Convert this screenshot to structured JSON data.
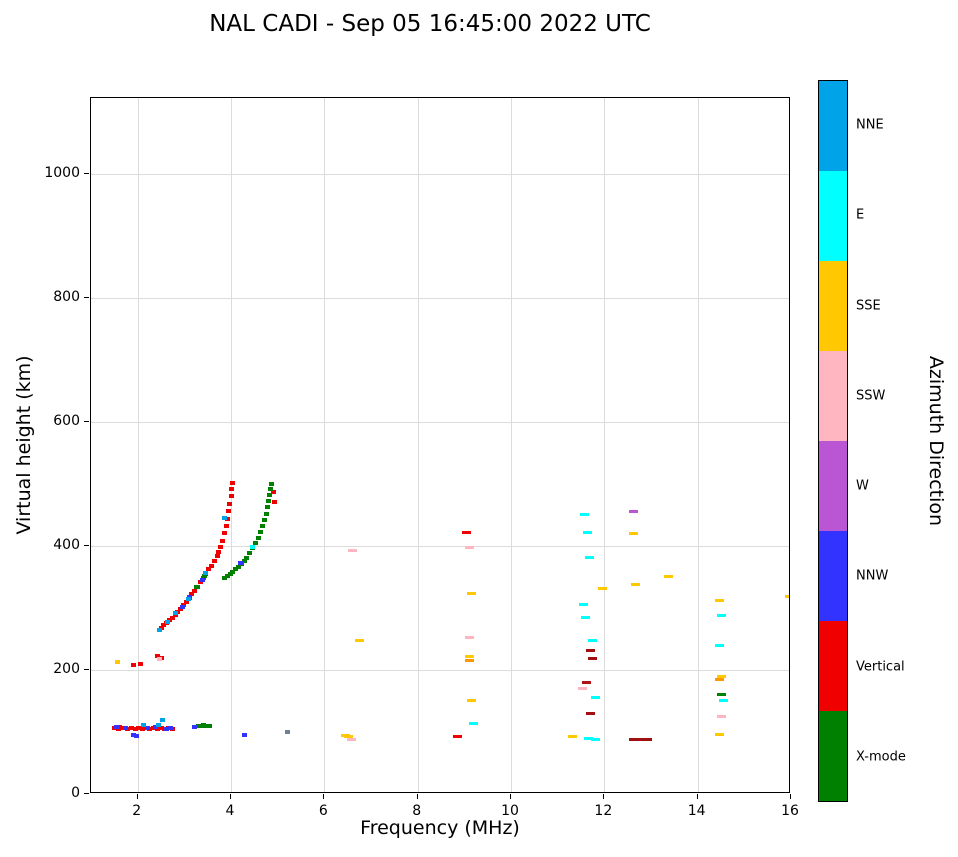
{
  "title": "NAL CADI - Sep 05 16:45:00 2022 UTC",
  "chart_data": {
    "type": "scatter",
    "title": "NAL CADI - Sep 05 16:45:00 2022 UTC",
    "xlabel": "Frequency (MHz)",
    "ylabel": "Virtual height (km)",
    "xlim": [
      1,
      16
    ],
    "ylim": [
      0,
      1122
    ],
    "xticks": [
      2,
      4,
      6,
      8,
      10,
      12,
      14,
      16
    ],
    "yticks": [
      0,
      200,
      400,
      600,
      800,
      1000
    ],
    "grid": true,
    "legend_position": "right-colorbar",
    "colorbar": {
      "label": "Azimuth Direction",
      "categories": [
        {
          "label": "NNE",
          "color": "#00a2e8"
        },
        {
          "label": "E",
          "color": "#00ffff"
        },
        {
          "label": "SSE",
          "color": "#ffc800"
        },
        {
          "label": "SSW",
          "color": "#ffb6c1"
        },
        {
          "label": "W",
          "color": "#ba55d3"
        },
        {
          "label": "NNW",
          "color": "#3333ff"
        },
        {
          "label": "Vertical",
          "color": "#f00000"
        },
        {
          "label": "X-mode",
          "color": "#008000"
        }
      ]
    },
    "series": [
      {
        "name": "Vertical",
        "color": "#f00000",
        "points": [
          [
            1.5,
            106
          ],
          [
            1.58,
            104
          ],
          [
            1.62,
            108
          ],
          [
            1.7,
            106
          ],
          [
            1.78,
            104
          ],
          [
            1.86,
            107
          ],
          [
            1.95,
            105
          ],
          [
            2.02,
            107
          ],
          [
            2.1,
            104
          ],
          [
            2.18,
            106
          ],
          [
            2.26,
            104
          ],
          [
            2.34,
            107
          ],
          [
            2.42,
            105
          ],
          [
            2.5,
            107
          ],
          [
            2.58,
            105
          ],
          [
            2.66,
            107
          ],
          [
            2.74,
            105
          ],
          [
            1.92,
            208
          ],
          [
            2.06,
            210
          ],
          [
            2.42,
            222
          ],
          [
            2.52,
            220
          ],
          [
            2.5,
            268
          ],
          [
            2.56,
            272
          ],
          [
            2.62,
            276
          ],
          [
            2.68,
            280
          ],
          [
            2.74,
            284
          ],
          [
            2.8,
            289
          ],
          [
            2.86,
            294
          ],
          [
            2.92,
            299
          ],
          [
            2.98,
            305
          ],
          [
            3.04,
            310
          ],
          [
            3.1,
            316
          ],
          [
            3.16,
            322
          ],
          [
            3.22,
            328
          ],
          [
            3.28,
            334
          ],
          [
            3.34,
            341
          ],
          [
            3.4,
            348
          ],
          [
            3.46,
            355
          ],
          [
            3.52,
            362
          ],
          [
            3.58,
            368
          ],
          [
            3.64,
            375
          ],
          [
            3.7,
            383
          ],
          [
            3.74,
            390
          ],
          [
            3.78,
            398
          ],
          [
            3.82,
            408
          ],
          [
            3.86,
            420
          ],
          [
            3.9,
            432
          ],
          [
            3.92,
            444
          ],
          [
            3.95,
            456
          ],
          [
            3.97,
            468
          ],
          [
            4.0,
            480
          ],
          [
            4.02,
            492
          ],
          [
            4.04,
            502
          ],
          [
            4.9,
            487
          ],
          [
            4.94,
            470
          ],
          [
            8.85,
            92
          ],
          [
            9.05,
            422
          ],
          [
            11.7,
            232,
            "#a01010"
          ],
          [
            11.74,
            218,
            "#a01010"
          ],
          [
            11.62,
            179,
            "#b01515"
          ],
          [
            11.7,
            130,
            "#a01010"
          ],
          [
            12.62,
            88,
            "#a01010"
          ],
          [
            12.72,
            88,
            "#a01010"
          ],
          [
            12.82,
            88,
            "#a01010"
          ],
          [
            12.92,
            88,
            "#a01010"
          ]
        ]
      },
      {
        "name": "X-mode",
        "color": "#008000",
        "points": [
          [
            3.3,
            110
          ],
          [
            3.36,
            110
          ],
          [
            3.42,
            112
          ],
          [
            3.48,
            110
          ],
          [
            3.54,
            110
          ],
          [
            3.26,
            333
          ],
          [
            3.44,
            352
          ],
          [
            3.86,
            348
          ],
          [
            3.92,
            352
          ],
          [
            3.98,
            355
          ],
          [
            4.04,
            358
          ],
          [
            4.1,
            362
          ],
          [
            4.16,
            366
          ],
          [
            4.22,
            371
          ],
          [
            4.28,
            376
          ],
          [
            4.34,
            381
          ],
          [
            4.4,
            388
          ],
          [
            4.46,
            396
          ],
          [
            4.52,
            404
          ],
          [
            4.58,
            413
          ],
          [
            4.63,
            422
          ],
          [
            4.68,
            432
          ],
          [
            4.72,
            442
          ],
          [
            4.75,
            452
          ],
          [
            4.78,
            462
          ],
          [
            4.8,
            472
          ],
          [
            4.82,
            482
          ],
          [
            4.84,
            492
          ],
          [
            4.86,
            500
          ],
          [
            14.5,
            160
          ]
        ]
      },
      {
        "name": "NNW",
        "color": "#3333ff",
        "points": [
          [
            1.54,
            108
          ],
          [
            1.74,
            106
          ],
          [
            1.9,
            95
          ],
          [
            1.98,
            94
          ],
          [
            2.22,
            106
          ],
          [
            2.38,
            108
          ],
          [
            2.62,
            104
          ],
          [
            2.7,
            106
          ],
          [
            3.22,
            108
          ],
          [
            4.28,
            95
          ],
          [
            5.22,
            100,
            "#708090"
          ],
          [
            2.96,
            302
          ],
          [
            3.12,
            318
          ],
          [
            3.38,
            345
          ],
          [
            4.2,
            372
          ]
        ]
      },
      {
        "name": "NNE",
        "color": "#00a2e8",
        "points": [
          [
            2.12,
            112
          ],
          [
            2.44,
            112
          ],
          [
            2.54,
            119
          ],
          [
            2.47,
            265
          ],
          [
            2.64,
            278
          ],
          [
            2.82,
            291
          ],
          [
            3.08,
            315
          ],
          [
            3.46,
            357
          ],
          [
            3.86,
            445
          ]
        ]
      },
      {
        "name": "E",
        "color": "#00ffff",
        "points": [
          [
            4.46,
            398
          ],
          [
            9.2,
            114
          ],
          [
            11.58,
            450
          ],
          [
            11.64,
            421
          ],
          [
            11.68,
            381
          ],
          [
            11.56,
            306
          ],
          [
            11.6,
            285
          ],
          [
            11.74,
            248
          ],
          [
            11.8,
            156
          ],
          [
            11.66,
            90
          ],
          [
            11.82,
            88
          ],
          [
            14.5,
            288
          ],
          [
            14.46,
            240
          ],
          [
            14.56,
            150
          ]
        ]
      },
      {
        "name": "SSE",
        "color": "#ffc800",
        "points": [
          [
            1.56,
            213
          ],
          [
            6.46,
            95
          ],
          [
            6.52,
            93
          ],
          [
            6.76,
            248
          ],
          [
            9.15,
            324
          ],
          [
            9.1,
            222
          ],
          [
            9.12,
            215,
            "#ff9800"
          ],
          [
            9.15,
            150
          ],
          [
            11.32,
            93
          ],
          [
            11.95,
            332
          ],
          [
            12.62,
            420
          ],
          [
            12.66,
            337
          ],
          [
            13.38,
            351
          ],
          [
            14.46,
            312
          ],
          [
            14.5,
            190
          ],
          [
            14.46,
            184,
            "#ff9800"
          ],
          [
            14.46,
            96
          ],
          [
            15.97,
            319
          ]
        ]
      },
      {
        "name": "SSW",
        "color": "#ffb6c1",
        "points": [
          [
            2.46,
            218
          ],
          [
            6.6,
            392
          ],
          [
            6.58,
            88
          ],
          [
            9.12,
            397
          ],
          [
            9.1,
            253
          ],
          [
            11.54,
            170
          ],
          [
            14.5,
            125
          ]
        ]
      },
      {
        "name": "W",
        "color": "#ba55d3",
        "points": [
          [
            12.62,
            456
          ]
        ]
      }
    ]
  }
}
